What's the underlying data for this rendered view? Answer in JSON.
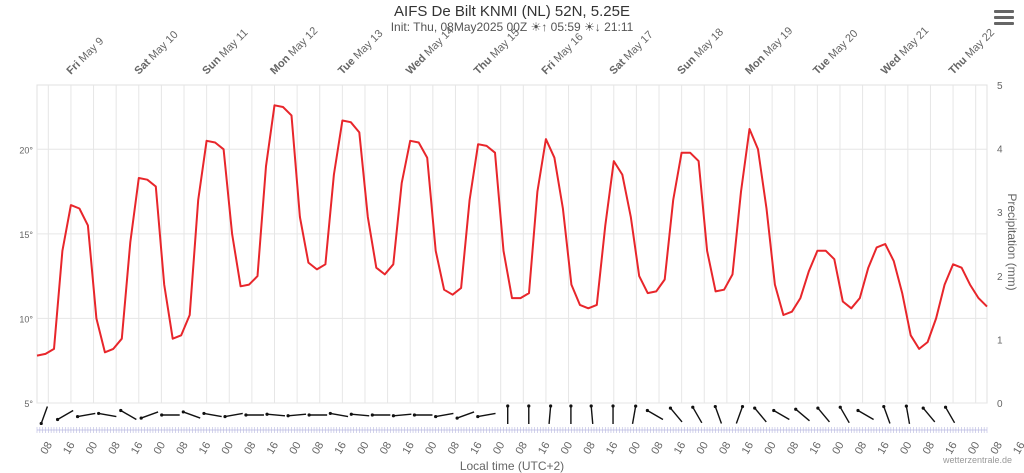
{
  "header": {
    "title": "AIFS De Bilt KNMI (NL) 52N, 5.25E",
    "subtitle_init": "Init: Thu, 08May2025 00Z",
    "sunrise": "05:59",
    "sunset": "21:11"
  },
  "footer": {
    "credit": "wetterzentrale.de",
    "x_axis_title": "Local time (UTC+2)"
  },
  "colors": {
    "series": "#e8262b",
    "grid": "#e6e6e6",
    "wind": "#111111",
    "tick": "#666666"
  },
  "chart_data": {
    "type": "line",
    "title": "AIFS De Bilt KNMI (NL) 52N, 5.25E",
    "x_unit": "forecast hours from 08 May 2025 00Z",
    "x_range_hours": [
      12,
      348
    ],
    "left_axis": {
      "ticks": [
        "5°",
        "10°",
        "15°",
        "20°"
      ],
      "range": [
        5,
        23.8
      ]
    },
    "right_axis": {
      "label": "Precipitation (mm)",
      "ticks": [
        "0",
        "1",
        "2",
        "3",
        "4",
        "5"
      ],
      "range": [
        0,
        5
      ]
    },
    "day_labels": [
      {
        "dow": "Fri",
        "date": "May 9",
        "hour": 24
      },
      {
        "dow": "Sat",
        "date": "May 10",
        "hour": 48
      },
      {
        "dow": "Sun",
        "date": "May 11",
        "hour": 72
      },
      {
        "dow": "Mon",
        "date": "May 12",
        "hour": 96
      },
      {
        "dow": "Tue",
        "date": "May 13",
        "hour": 120
      },
      {
        "dow": "Wed",
        "date": "May 14",
        "hour": 144
      },
      {
        "dow": "Thu",
        "date": "May 15",
        "hour": 168
      },
      {
        "dow": "Fri",
        "date": "May 16",
        "hour": 192
      },
      {
        "dow": "Sat",
        "date": "May 17",
        "hour": 216
      },
      {
        "dow": "Sun",
        "date": "May 18",
        "hour": 240
      },
      {
        "dow": "Mon",
        "date": "May 19",
        "hour": 264
      },
      {
        "dow": "Tue",
        "date": "May 20",
        "hour": 288
      },
      {
        "dow": "Wed",
        "date": "May 21",
        "hour": 312
      },
      {
        "dow": "Thu",
        "date": "May 22",
        "hour": 336
      }
    ],
    "hour_tick_labels": [
      "08",
      "16",
      "00",
      "08",
      "16",
      "00",
      "08",
      "16",
      "00",
      "08",
      "16",
      "00",
      "08",
      "16",
      "00",
      "08",
      "16",
      "00",
      "08",
      "16",
      "00",
      "08",
      "16",
      "00",
      "08",
      "16",
      "00",
      "08",
      "16",
      "00",
      "08",
      "16",
      "00",
      "08",
      "16",
      "00",
      "08",
      "16",
      "00",
      "08",
      "16",
      "00",
      "08",
      "16"
    ],
    "series": [
      {
        "name": "Temperature",
        "points": [
          [
            12,
            7.8
          ],
          [
            15,
            7.9
          ],
          [
            18,
            8.2
          ],
          [
            21,
            14.0
          ],
          [
            24,
            16.7
          ],
          [
            27,
            16.5
          ],
          [
            30,
            15.5
          ],
          [
            33,
            10.0
          ],
          [
            36,
            8.0
          ],
          [
            39,
            8.2
          ],
          [
            42,
            8.8
          ],
          [
            45,
            14.5
          ],
          [
            48,
            18.3
          ],
          [
            51,
            18.2
          ],
          [
            54,
            17.8
          ],
          [
            57,
            12.0
          ],
          [
            60,
            8.8
          ],
          [
            63,
            9.0
          ],
          [
            66,
            10.2
          ],
          [
            69,
            17.0
          ],
          [
            72,
            20.5
          ],
          [
            75,
            20.4
          ],
          [
            78,
            20.0
          ],
          [
            81,
            15.0
          ],
          [
            84,
            11.9
          ],
          [
            87,
            12.0
          ],
          [
            90,
            12.5
          ],
          [
            93,
            19.0
          ],
          [
            96,
            22.6
          ],
          [
            99,
            22.5
          ],
          [
            102,
            22.0
          ],
          [
            105,
            16.0
          ],
          [
            108,
            13.3
          ],
          [
            111,
            12.9
          ],
          [
            114,
            13.2
          ],
          [
            117,
            18.5
          ],
          [
            120,
            21.7
          ],
          [
            123,
            21.6
          ],
          [
            126,
            21.0
          ],
          [
            129,
            16.0
          ],
          [
            132,
            13.0
          ],
          [
            135,
            12.6
          ],
          [
            138,
            13.2
          ],
          [
            141,
            18.0
          ],
          [
            144,
            20.5
          ],
          [
            147,
            20.4
          ],
          [
            150,
            19.5
          ],
          [
            153,
            14.0
          ],
          [
            156,
            11.7
          ],
          [
            159,
            11.4
          ],
          [
            162,
            11.8
          ],
          [
            165,
            17.0
          ],
          [
            168,
            20.3
          ],
          [
            171,
            20.2
          ],
          [
            174,
            19.8
          ],
          [
            177,
            14.0
          ],
          [
            180,
            11.2
          ],
          [
            183,
            11.2
          ],
          [
            186,
            11.5
          ],
          [
            189,
            17.5
          ],
          [
            192,
            20.6
          ],
          [
            195,
            19.5
          ],
          [
            198,
            16.5
          ],
          [
            201,
            12.0
          ],
          [
            204,
            10.8
          ],
          [
            207,
            10.6
          ],
          [
            210,
            10.8
          ],
          [
            213,
            15.5
          ],
          [
            216,
            19.3
          ],
          [
            219,
            18.5
          ],
          [
            222,
            16.0
          ],
          [
            225,
            12.5
          ],
          [
            228,
            11.5
          ],
          [
            231,
            11.6
          ],
          [
            234,
            12.3
          ],
          [
            237,
            17.0
          ],
          [
            240,
            19.8
          ],
          [
            243,
            19.8
          ],
          [
            246,
            19.3
          ],
          [
            249,
            14.0
          ],
          [
            252,
            11.6
          ],
          [
            255,
            11.7
          ],
          [
            258,
            12.6
          ],
          [
            261,
            17.5
          ],
          [
            264,
            21.2
          ],
          [
            267,
            20.0
          ],
          [
            270,
            16.5
          ],
          [
            273,
            12.0
          ],
          [
            276,
            10.2
          ],
          [
            279,
            10.4
          ],
          [
            282,
            11.2
          ],
          [
            285,
            12.8
          ],
          [
            288,
            14.0
          ],
          [
            291,
            14.0
          ],
          [
            294,
            13.5
          ],
          [
            297,
            11.0
          ],
          [
            300,
            10.6
          ],
          [
            303,
            11.2
          ],
          [
            306,
            13.0
          ],
          [
            309,
            14.2
          ],
          [
            312,
            14.4
          ],
          [
            315,
            13.4
          ],
          [
            318,
            11.5
          ],
          [
            321,
            9.0
          ],
          [
            324,
            8.2
          ],
          [
            327,
            8.6
          ],
          [
            330,
            10.0
          ],
          [
            333,
            12.0
          ],
          [
            336,
            13.2
          ],
          [
            339,
            13.0
          ],
          [
            342,
            12.0
          ],
          [
            345,
            11.2
          ],
          [
            348,
            10.7
          ]
        ]
      }
    ],
    "wind_arrow_count": 44,
    "grid": true,
    "legend": "none"
  }
}
